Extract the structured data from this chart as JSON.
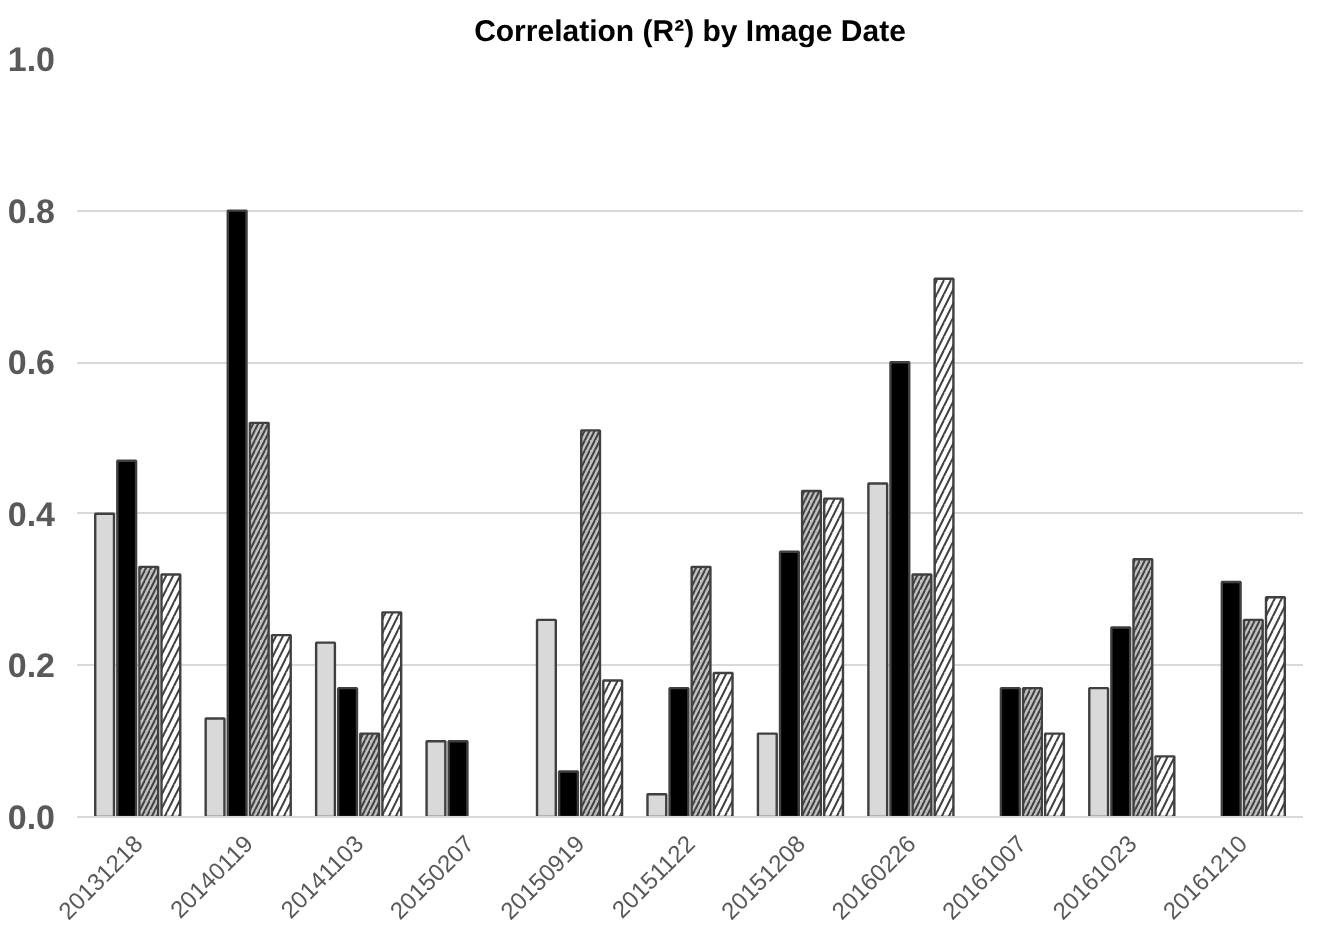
{
  "chart_data": {
    "type": "bar",
    "title": "Correlation (R²) by Image Date",
    "categories": [
      "20131218",
      "20140119",
      "20141103",
      "20150207",
      "20150919",
      "20151122",
      "20151208",
      "20160226",
      "20161007",
      "20161023",
      "20161210"
    ],
    "series": [
      {
        "color": "#d9d9d9",
        "values": [
          0.4,
          0.13,
          0.23,
          0.1,
          0.26,
          0.03,
          0.11,
          0.44,
          null,
          0.17,
          null
        ]
      },
      {
        "color": "#000000",
        "values": [
          0.47,
          0.8,
          0.17,
          0.1,
          0.06,
          0.17,
          0.35,
          0.6,
          0.17,
          0.25,
          0.31
        ]
      },
      {
        "color": "#bfbfbf",
        "values": [
          0.33,
          0.52,
          0.11,
          null,
          0.51,
          0.33,
          0.43,
          0.32,
          0.17,
          0.34,
          0.26
        ]
      },
      {
        "color": "#ffffff",
        "values": [
          0.32,
          0.24,
          0.27,
          null,
          0.18,
          0.19,
          0.42,
          0.71,
          0.11,
          0.08,
          0.29
        ]
      }
    ],
    "ylim": [
      0,
      1.0
    ],
    "yticks": [
      {
        "value": 0,
        "label": "0.0"
      },
      {
        "value": 0.2,
        "label": "0.2"
      },
      {
        "value": 0.4,
        "label": "0.4"
      },
      {
        "value": 0.6,
        "label": "0.6"
      },
      {
        "value": 0.8,
        "label": "0.8"
      },
      {
        "value": 1.0,
        "label": "1.0"
      }
    ],
    "grid": "y"
  }
}
